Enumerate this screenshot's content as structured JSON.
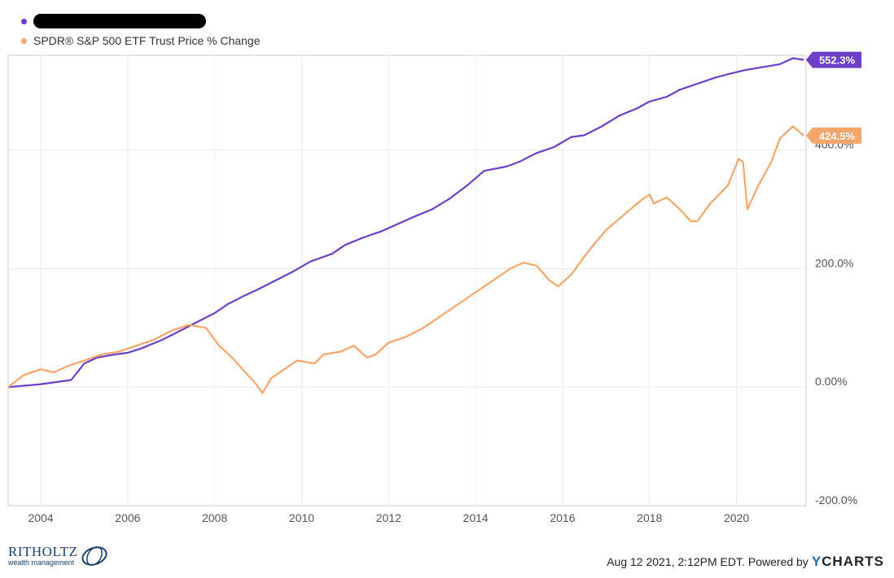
{
  "legend": {
    "series1_label_redacted": true,
    "series2_label": "SPDR® S&P 500 ETF Trust Price % Change"
  },
  "footer": {
    "timestamp": "Aug 12 2021, 2:12PM EDT.",
    "powered_by": "Powered by",
    "brand": "CHARTS",
    "brand_prefix": "Y"
  },
  "logo": {
    "name": "RITHOLTZ",
    "sub": "wealth management"
  },
  "chart_data": {
    "type": "line",
    "x_range": [
      2003.25,
      2021.6
    ],
    "ylim": [
      -200,
      560
    ],
    "x_ticks": [
      2004,
      2006,
      2008,
      2010,
      2012,
      2014,
      2016,
      2018,
      2020
    ],
    "x_tick_labels": [
      "2004",
      "2006",
      "2008",
      "2010",
      "2012",
      "2014",
      "2016",
      "2018",
      "2020"
    ],
    "y_ticks": [
      -200,
      0,
      200,
      400
    ],
    "y_tick_labels": [
      "-200.0%",
      "0.00%",
      "200.0%",
      "400.0%"
    ],
    "grid": true,
    "legend_position": "top-left",
    "series": [
      {
        "color": "#6c3fc5",
        "end_label": "552.3%",
        "x": [
          2003.25,
          2004.0,
          2004.5,
          2004.7,
          2005.0,
          2005.3,
          2005.7,
          2006.0,
          2006.3,
          2006.8,
          2007.2,
          2007.6,
          2008.0,
          2008.3,
          2008.7,
          2009.0,
          2009.4,
          2009.8,
          2010.2,
          2010.7,
          2011.0,
          2011.4,
          2011.8,
          2012.2,
          2012.6,
          2013.0,
          2013.4,
          2013.8,
          2014.2,
          2014.7,
          2015.0,
          2015.4,
          2015.8,
          2016.2,
          2016.5,
          2016.9,
          2017.3,
          2017.7,
          2018.0,
          2018.4,
          2018.7,
          2019.1,
          2019.5,
          2019.8,
          2020.2,
          2020.6,
          2021.0,
          2021.3,
          2021.55
        ],
        "y": [
          0,
          5,
          10,
          12,
          40,
          50,
          55,
          58,
          65,
          80,
          95,
          110,
          125,
          140,
          155,
          165,
          180,
          195,
          212,
          225,
          240,
          252,
          262,
          275,
          288,
          300,
          318,
          340,
          365,
          372,
          380,
          395,
          405,
          422,
          425,
          440,
          458,
          470,
          482,
          490,
          502,
          512,
          522,
          528,
          535,
          540,
          545,
          555,
          552.3
        ]
      },
      {
        "color": "#f5a66b",
        "end_label": "424.5%",
        "x": [
          2003.25,
          2003.6,
          2004.0,
          2004.3,
          2004.6,
          2005.0,
          2005.4,
          2005.8,
          2006.2,
          2006.6,
          2007.0,
          2007.4,
          2007.8,
          2008.1,
          2008.4,
          2008.7,
          2008.9,
          2009.1,
          2009.3,
          2009.6,
          2009.9,
          2010.3,
          2010.5,
          2010.9,
          2011.2,
          2011.5,
          2011.7,
          2012.0,
          2012.4,
          2012.8,
          2013.2,
          2013.6,
          2014.0,
          2014.4,
          2014.8,
          2015.1,
          2015.4,
          2015.7,
          2015.9,
          2016.2,
          2016.6,
          2017.0,
          2017.4,
          2017.8,
          2018.0,
          2018.1,
          2018.4,
          2018.7,
          2018.95,
          2019.1,
          2019.4,
          2019.8,
          2020.05,
          2020.15,
          2020.25,
          2020.5,
          2020.8,
          2021.0,
          2021.3,
          2021.55
        ],
        "y": [
          0,
          20,
          30,
          25,
          35,
          45,
          55,
          60,
          70,
          80,
          95,
          105,
          100,
          70,
          50,
          25,
          10,
          -10,
          15,
          30,
          45,
          40,
          55,
          60,
          70,
          50,
          55,
          75,
          85,
          100,
          120,
          140,
          160,
          180,
          200,
          210,
          205,
          180,
          170,
          190,
          230,
          265,
          290,
          315,
          325,
          310,
          320,
          300,
          280,
          280,
          310,
          340,
          385,
          380,
          300,
          340,
          380,
          420,
          440,
          424.5
        ]
      }
    ]
  }
}
